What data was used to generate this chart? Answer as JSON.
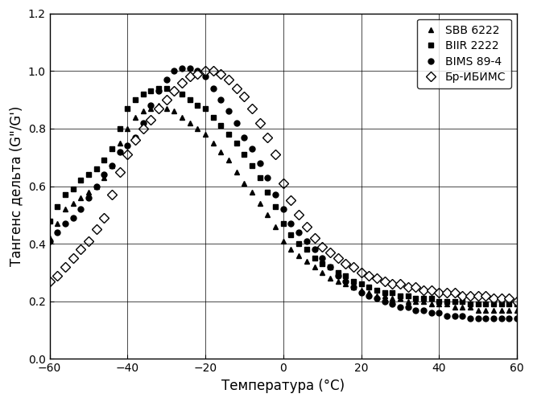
{
  "title": "",
  "xlabel": "Температура (°C)",
  "ylabel": "Тангенс дельта (G\"/G')",
  "xlim": [
    -60,
    60
  ],
  "ylim": [
    0.0,
    1.2
  ],
  "xticks": [
    -60,
    -40,
    -20,
    0,
    20,
    40,
    60
  ],
  "yticks": [
    0.0,
    0.2,
    0.4,
    0.6,
    0.8,
    1.0,
    1.2
  ],
  "legend_labels": [
    "SBB 6222",
    "BIIR 2222",
    "BIMS 89-4",
    "Бр-ИБИМС"
  ],
  "SBB6222": {
    "x": [
      -60,
      -58,
      -56,
      -54,
      -52,
      -50,
      -48,
      -46,
      -44,
      -42,
      -40,
      -38,
      -36,
      -34,
      -32,
      -30,
      -28,
      -26,
      -24,
      -22,
      -20,
      -18,
      -16,
      -14,
      -12,
      -10,
      -8,
      -6,
      -4,
      -2,
      0,
      2,
      4,
      6,
      8,
      10,
      12,
      14,
      16,
      18,
      20,
      22,
      24,
      26,
      28,
      30,
      32,
      34,
      36,
      38,
      40,
      42,
      44,
      46,
      48,
      50,
      52,
      54,
      56,
      58,
      60
    ],
    "y": [
      0.42,
      0.47,
      0.52,
      0.54,
      0.56,
      0.58,
      0.6,
      0.63,
      0.67,
      0.75,
      0.8,
      0.84,
      0.86,
      0.87,
      0.88,
      0.87,
      0.86,
      0.84,
      0.82,
      0.8,
      0.78,
      0.75,
      0.72,
      0.69,
      0.65,
      0.61,
      0.58,
      0.54,
      0.5,
      0.46,
      0.41,
      0.38,
      0.36,
      0.34,
      0.32,
      0.3,
      0.28,
      0.27,
      0.26,
      0.25,
      0.24,
      0.23,
      0.22,
      0.22,
      0.21,
      0.21,
      0.2,
      0.2,
      0.2,
      0.19,
      0.19,
      0.19,
      0.18,
      0.18,
      0.18,
      0.17,
      0.17,
      0.17,
      0.17,
      0.17,
      0.17
    ]
  },
  "BIIR2222": {
    "x": [
      -60,
      -58,
      -56,
      -54,
      -52,
      -50,
      -48,
      -46,
      -44,
      -42,
      -40,
      -38,
      -36,
      -34,
      -32,
      -30,
      -28,
      -26,
      -24,
      -22,
      -20,
      -18,
      -16,
      -14,
      -12,
      -10,
      -8,
      -6,
      -4,
      -2,
      0,
      2,
      4,
      6,
      8,
      10,
      12,
      14,
      16,
      18,
      20,
      22,
      24,
      26,
      28,
      30,
      32,
      34,
      36,
      38,
      40,
      42,
      44,
      46,
      48,
      50,
      52,
      54,
      56,
      58,
      60
    ],
    "y": [
      0.48,
      0.53,
      0.57,
      0.59,
      0.62,
      0.64,
      0.66,
      0.69,
      0.73,
      0.8,
      0.87,
      0.9,
      0.92,
      0.93,
      0.94,
      0.94,
      0.93,
      0.92,
      0.9,
      0.88,
      0.87,
      0.84,
      0.81,
      0.78,
      0.75,
      0.71,
      0.67,
      0.63,
      0.58,
      0.53,
      0.47,
      0.43,
      0.4,
      0.38,
      0.35,
      0.33,
      0.32,
      0.3,
      0.29,
      0.27,
      0.26,
      0.25,
      0.24,
      0.23,
      0.23,
      0.22,
      0.22,
      0.21,
      0.21,
      0.21,
      0.2,
      0.2,
      0.2,
      0.2,
      0.19,
      0.19,
      0.19,
      0.19,
      0.19,
      0.19,
      0.19
    ]
  },
  "BIMS894": {
    "x": [
      -60,
      -58,
      -56,
      -54,
      -52,
      -50,
      -48,
      -46,
      -44,
      -42,
      -40,
      -38,
      -36,
      -34,
      -32,
      -30,
      -28,
      -26,
      -24,
      -22,
      -20,
      -18,
      -16,
      -14,
      -12,
      -10,
      -8,
      -6,
      -4,
      -2,
      0,
      2,
      4,
      6,
      8,
      10,
      12,
      14,
      16,
      18,
      20,
      22,
      24,
      26,
      28,
      30,
      32,
      34,
      36,
      38,
      40,
      42,
      44,
      46,
      48,
      50,
      52,
      54,
      56,
      58,
      60
    ],
    "y": [
      0.41,
      0.44,
      0.47,
      0.49,
      0.52,
      0.56,
      0.6,
      0.64,
      0.67,
      0.72,
      0.74,
      0.77,
      0.82,
      0.88,
      0.93,
      0.97,
      1.0,
      1.01,
      1.01,
      1.0,
      0.98,
      0.94,
      0.9,
      0.86,
      0.82,
      0.77,
      0.73,
      0.68,
      0.63,
      0.57,
      0.52,
      0.47,
      0.44,
      0.41,
      0.38,
      0.35,
      0.32,
      0.29,
      0.27,
      0.25,
      0.23,
      0.22,
      0.21,
      0.2,
      0.19,
      0.18,
      0.18,
      0.17,
      0.17,
      0.16,
      0.16,
      0.15,
      0.15,
      0.15,
      0.14,
      0.14,
      0.14,
      0.14,
      0.14,
      0.14,
      0.14
    ]
  },
  "BrIBIMS": {
    "x": [
      -60,
      -58,
      -56,
      -54,
      -52,
      -50,
      -48,
      -46,
      -44,
      -42,
      -40,
      -38,
      -36,
      -34,
      -32,
      -30,
      -28,
      -26,
      -24,
      -22,
      -20,
      -18,
      -16,
      -14,
      -12,
      -10,
      -8,
      -6,
      -4,
      -2,
      0,
      2,
      4,
      6,
      8,
      10,
      12,
      14,
      16,
      18,
      20,
      22,
      24,
      26,
      28,
      30,
      32,
      34,
      36,
      38,
      40,
      42,
      44,
      46,
      48,
      50,
      52,
      54,
      56,
      58,
      60
    ],
    "y": [
      0.27,
      0.29,
      0.32,
      0.35,
      0.38,
      0.41,
      0.45,
      0.49,
      0.57,
      0.65,
      0.71,
      0.76,
      0.8,
      0.83,
      0.87,
      0.9,
      0.93,
      0.96,
      0.98,
      0.99,
      1.0,
      1.0,
      0.99,
      0.97,
      0.94,
      0.91,
      0.87,
      0.82,
      0.77,
      0.71,
      0.61,
      0.55,
      0.5,
      0.46,
      0.42,
      0.39,
      0.37,
      0.35,
      0.33,
      0.32,
      0.3,
      0.29,
      0.28,
      0.27,
      0.26,
      0.26,
      0.25,
      0.25,
      0.24,
      0.24,
      0.23,
      0.23,
      0.23,
      0.22,
      0.22,
      0.22,
      0.22,
      0.21,
      0.21,
      0.21,
      0.2
    ]
  }
}
